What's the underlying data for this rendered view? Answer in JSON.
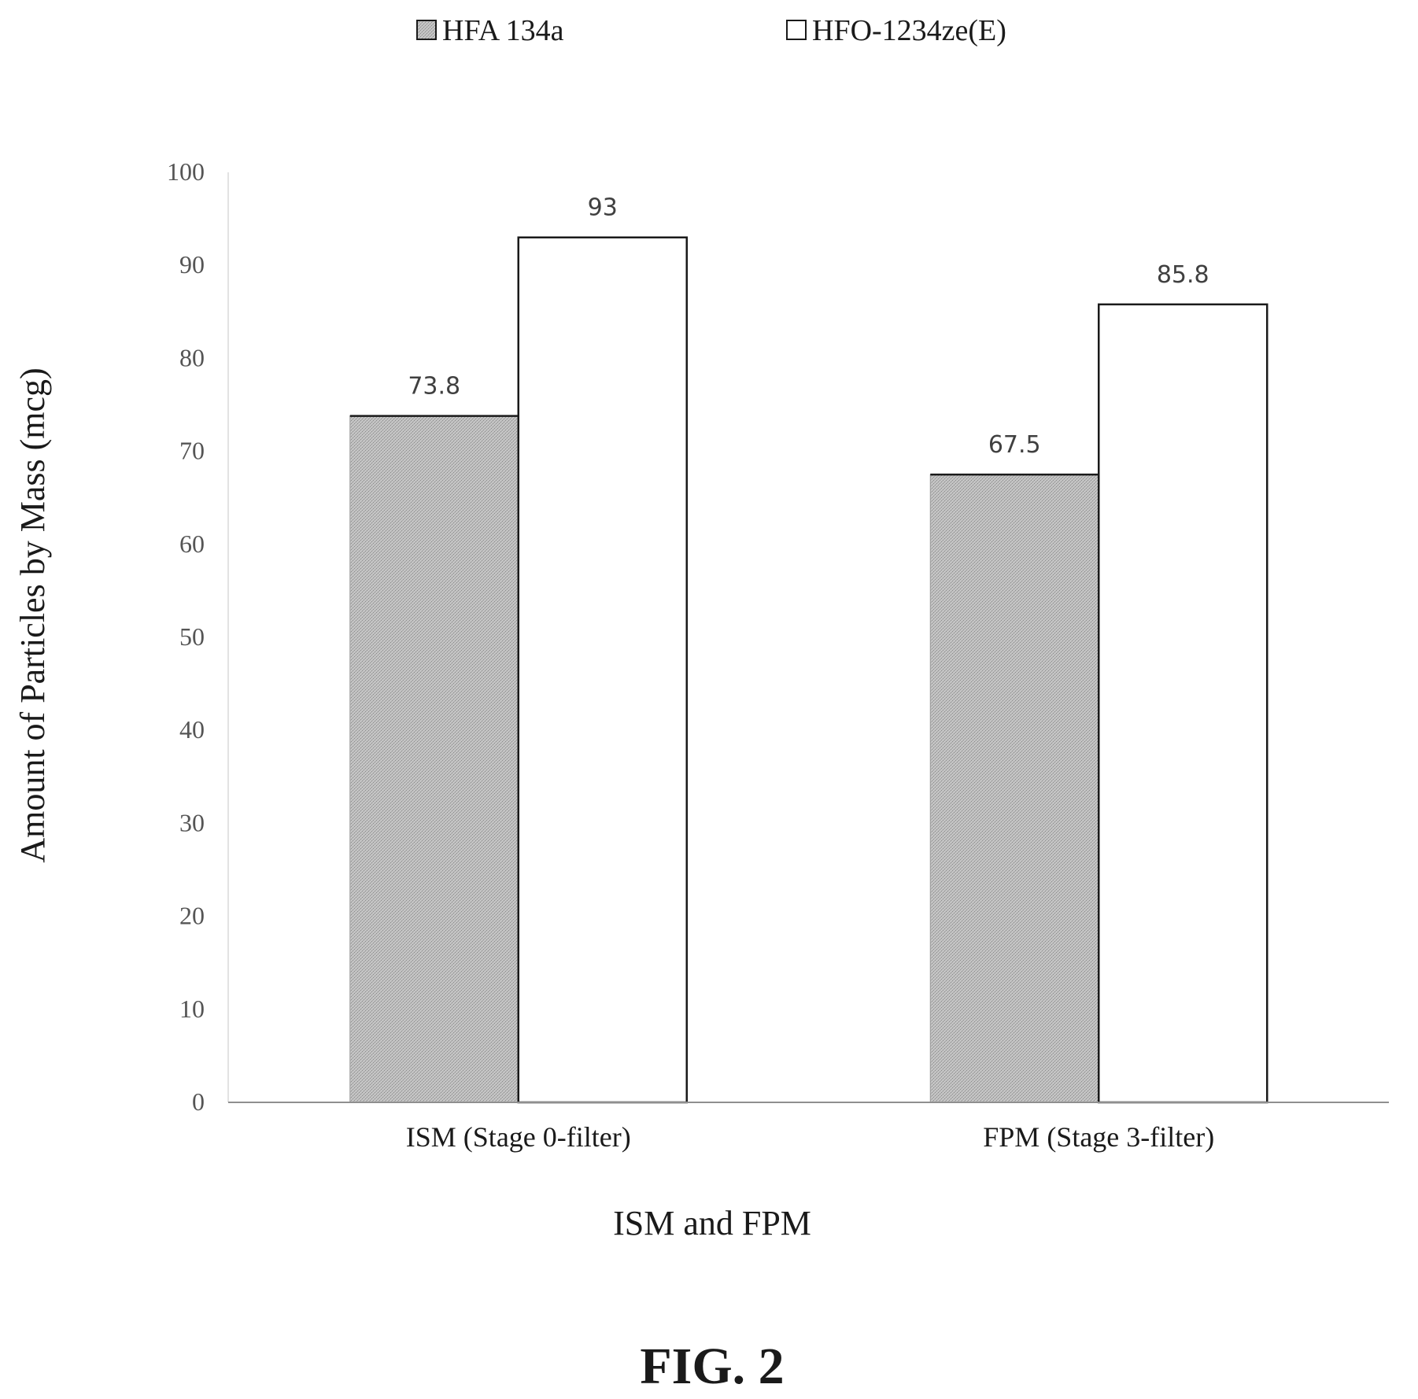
{
  "chart_data": {
    "type": "bar",
    "title": "",
    "categories": [
      "ISM (Stage 0-filter)",
      "FPM (Stage 3-filter)"
    ],
    "series": [
      {
        "name": "HFA 134a",
        "values": [
          73.8,
          67.5
        ],
        "color": "#b9b9b9",
        "pattern": "stipple"
      },
      {
        "name": "HFO-1234ze(E)",
        "values": [
          93,
          85.8
        ],
        "color": "#ffffff",
        "pattern": "none"
      }
    ],
    "data_labels": [
      [
        "73.8",
        "67.5"
      ],
      [
        "93",
        "85.8"
      ]
    ],
    "xlabel": "ISM and FPM",
    "ylabel": "Amount of Particles by Mass (mcg)",
    "ylim": [
      0,
      100
    ],
    "yticks": [
      0,
      10,
      20,
      30,
      40,
      50,
      60,
      70,
      80,
      90,
      100
    ],
    "grid": false,
    "legend": {
      "position": "top"
    }
  },
  "figure_caption": "FIG. 2"
}
